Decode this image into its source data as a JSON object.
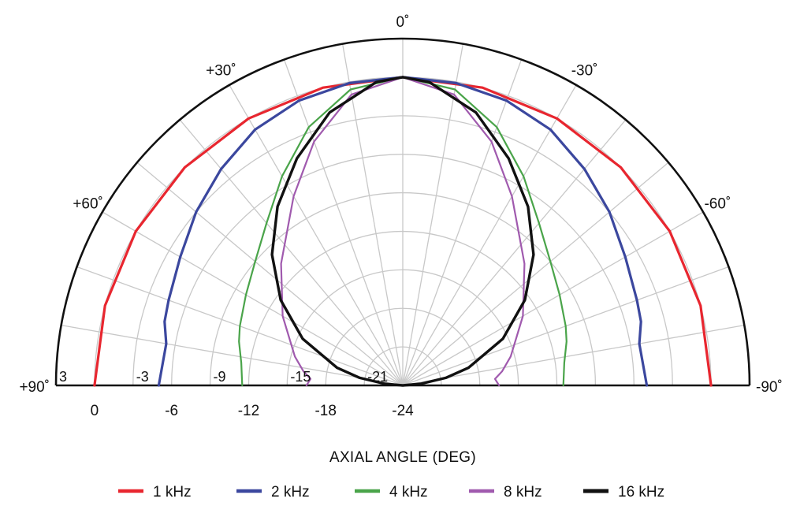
{
  "chart_data": {
    "type": "polar",
    "title": "",
    "xlabel": "AXIAL ANGLE (DEG)",
    "angle_range_deg": [
      -90,
      90
    ],
    "radial_range_db": [
      -24,
      3
    ],
    "grid": true,
    "angle_tick_labels": [
      {
        "deg": 0,
        "label": "0˚"
      },
      {
        "deg": 30,
        "label": "+30˚"
      },
      {
        "deg": -30,
        "label": "-30˚"
      },
      {
        "deg": 60,
        "label": "+60˚"
      },
      {
        "deg": -60,
        "label": "-60˚"
      },
      {
        "deg": 90,
        "label": "+90˚"
      },
      {
        "deg": -90,
        "label": "-90˚"
      }
    ],
    "ring_labels": [
      {
        "db": 3,
        "label": "3"
      },
      {
        "db": -3,
        "label": "-3"
      },
      {
        "db": -9,
        "label": "-9"
      },
      {
        "db": -15,
        "label": "-15"
      },
      {
        "db": -21,
        "label": "-21"
      }
    ],
    "level_labels": [
      {
        "db": 0,
        "label": "0"
      },
      {
        "db": -6,
        "label": "-6"
      },
      {
        "db": -12,
        "label": "-12"
      },
      {
        "db": -18,
        "label": "-18"
      },
      {
        "db": -24,
        "label": "-24"
      }
    ],
    "series": [
      {
        "name": "1 kHz",
        "color": "#e8262f",
        "points": [
          [
            -90,
            0
          ],
          [
            -75,
            0
          ],
          [
            -60,
            0
          ],
          [
            -45,
            0
          ],
          [
            -30,
            0
          ],
          [
            -15,
            0
          ],
          [
            0,
            0
          ],
          [
            15,
            0
          ],
          [
            30,
            0
          ],
          [
            45,
            0
          ],
          [
            60,
            0
          ],
          [
            75,
            0
          ],
          [
            90,
            0
          ]
        ]
      },
      {
        "name": "2 kHz",
        "color": "#3b479e",
        "points": [
          [
            -90,
            -5
          ],
          [
            -80,
            -5.3
          ],
          [
            -75,
            -4.8
          ],
          [
            -70,
            -4.6
          ],
          [
            -60,
            -4
          ],
          [
            -50,
            -3
          ],
          [
            -40,
            -2
          ],
          [
            -30,
            -1
          ],
          [
            -20,
            -0.4
          ],
          [
            -10,
            -0.1
          ],
          [
            0,
            0
          ],
          [
            10,
            -0.1
          ],
          [
            20,
            -0.4
          ],
          [
            30,
            -1
          ],
          [
            40,
            -2
          ],
          [
            50,
            -3
          ],
          [
            60,
            -4
          ],
          [
            70,
            -4.6
          ],
          [
            75,
            -4.8
          ],
          [
            80,
            -5.3
          ],
          [
            90,
            -5
          ]
        ]
      },
      {
        "name": "4 kHz",
        "color": "#4aa44a",
        "points": [
          [
            -90,
            -11.5
          ],
          [
            -82,
            -11.3
          ],
          [
            -75,
            -10.8
          ],
          [
            -70,
            -10.5
          ],
          [
            -60,
            -9.9
          ],
          [
            -50,
            -9
          ],
          [
            -40,
            -7.5
          ],
          [
            -30,
            -5.2
          ],
          [
            -20,
            -2.6
          ],
          [
            -10,
            -0.6
          ],
          [
            0,
            0
          ],
          [
            10,
            -0.6
          ],
          [
            20,
            -2.6
          ],
          [
            30,
            -5.2
          ],
          [
            40,
            -7.5
          ],
          [
            50,
            -9
          ],
          [
            60,
            -9.9
          ],
          [
            70,
            -10.5
          ],
          [
            75,
            -10.8
          ],
          [
            82,
            -11.3
          ],
          [
            90,
            -11.5
          ]
        ]
      },
      {
        "name": "8 kHz",
        "color": "#a05aae",
        "points": [
          [
            -90,
            -16.5
          ],
          [
            -86,
            -16.8
          ],
          [
            -82,
            -16.2
          ],
          [
            -75,
            -15.3
          ],
          [
            -60,
            -13.2
          ],
          [
            -45,
            -10.6
          ],
          [
            -30,
            -7
          ],
          [
            -20,
            -3.8
          ],
          [
            -10,
            -1
          ],
          [
            0,
            0
          ],
          [
            10,
            -1
          ],
          [
            20,
            -3.8
          ],
          [
            30,
            -7
          ],
          [
            45,
            -10.6
          ],
          [
            60,
            -13.2
          ],
          [
            75,
            -15.3
          ],
          [
            82,
            -16.2
          ],
          [
            86,
            -16.8
          ],
          [
            90,
            -16.5
          ]
        ]
      },
      {
        "name": "16 kHz",
        "color": "#111111",
        "points": [
          [
            -90,
            -24
          ],
          [
            -85,
            -22.6
          ],
          [
            -80,
            -20.6
          ],
          [
            -75,
            -18.7
          ],
          [
            -65,
            -15.4
          ],
          [
            -55,
            -12.4
          ],
          [
            -45,
            -9.6
          ],
          [
            -35,
            -7
          ],
          [
            -25,
            -4.5
          ],
          [
            -15,
            -2
          ],
          [
            -5,
            -0.3
          ],
          [
            0,
            0
          ],
          [
            5,
            -0.3
          ],
          [
            15,
            -2
          ],
          [
            25,
            -4.5
          ],
          [
            35,
            -7
          ],
          [
            45,
            -9.6
          ],
          [
            55,
            -12.4
          ],
          [
            65,
            -15.4
          ],
          [
            75,
            -18.7
          ],
          [
            80,
            -20.6
          ],
          [
            85,
            -22.6
          ],
          [
            90,
            -24
          ]
        ]
      }
    ]
  }
}
